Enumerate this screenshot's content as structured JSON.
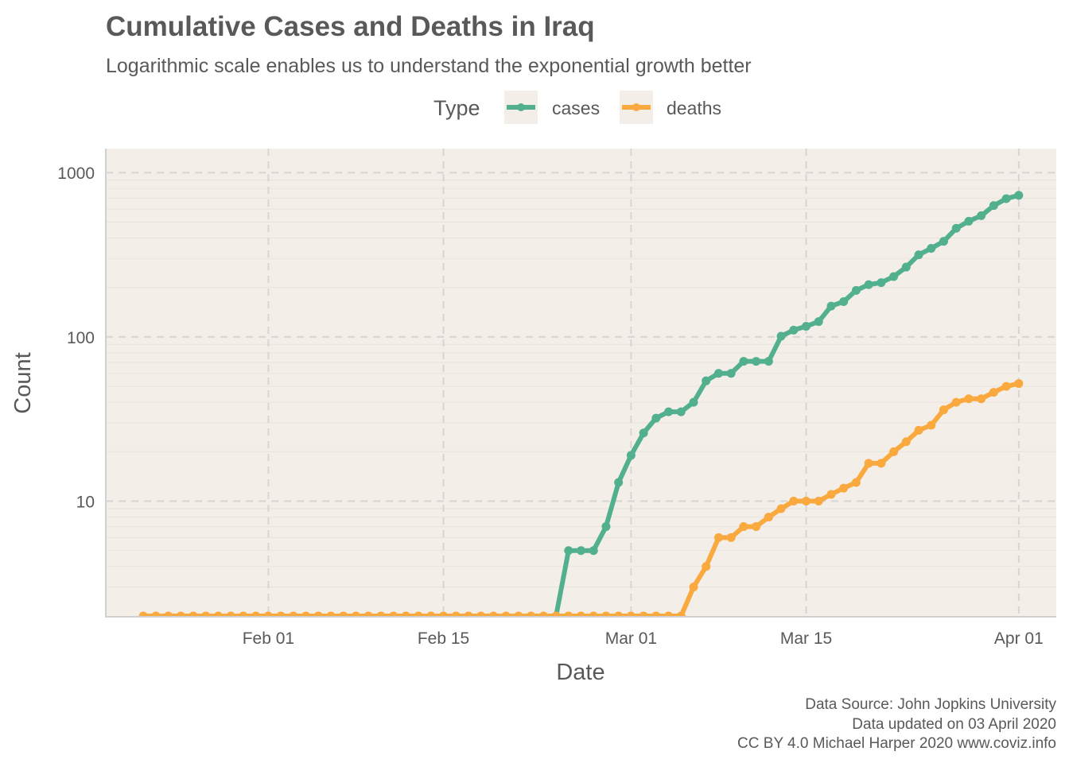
{
  "chart_data": {
    "type": "line",
    "title": "Cumulative Cases and Deaths in Iraq",
    "subtitle": "Logarithmic scale enables us to understand the exponential growth better",
    "xlabel": "Date",
    "ylabel": "Count",
    "y_scale": "log10",
    "ylim": [
      2,
      1400
    ],
    "xlim": [
      "2020-01-19",
      "2020-04-04"
    ],
    "x_ticks": [
      {
        "date": "2020-02-01",
        "label": "Feb 01"
      },
      {
        "date": "2020-02-15",
        "label": "Feb 15"
      },
      {
        "date": "2020-03-01",
        "label": "Mar 01"
      },
      {
        "date": "2020-03-15",
        "label": "Mar 15"
      },
      {
        "date": "2020-04-01",
        "label": "Apr 01"
      }
    ],
    "y_ticks": [
      {
        "value": 10,
        "label": "10"
      },
      {
        "value": 100,
        "label": "100"
      },
      {
        "value": 1000,
        "label": "1000"
      }
    ],
    "grid": true,
    "legend": {
      "title": "Type",
      "position": "top"
    },
    "colors": {
      "cases": "#52b08f",
      "deaths": "#f9a93e",
      "panel": "#f4eee8",
      "grid": "#d5d5d5"
    },
    "series": [
      {
        "name": "cases",
        "color": "#52b08f",
        "points": [
          {
            "x": "2020-02-24",
            "y": 1
          },
          {
            "x": "2020-02-25",
            "y": 5
          },
          {
            "x": "2020-02-26",
            "y": 5
          },
          {
            "x": "2020-02-27",
            "y": 5
          },
          {
            "x": "2020-02-28",
            "y": 7
          },
          {
            "x": "2020-02-29",
            "y": 13
          },
          {
            "x": "2020-03-01",
            "y": 19
          },
          {
            "x": "2020-03-02",
            "y": 26
          },
          {
            "x": "2020-03-03",
            "y": 32
          },
          {
            "x": "2020-03-04",
            "y": 35
          },
          {
            "x": "2020-03-05",
            "y": 35
          },
          {
            "x": "2020-03-06",
            "y": 40
          },
          {
            "x": "2020-03-07",
            "y": 54
          },
          {
            "x": "2020-03-08",
            "y": 60
          },
          {
            "x": "2020-03-09",
            "y": 60
          },
          {
            "x": "2020-03-10",
            "y": 71
          },
          {
            "x": "2020-03-11",
            "y": 71
          },
          {
            "x": "2020-03-12",
            "y": 71
          },
          {
            "x": "2020-03-13",
            "y": 101
          },
          {
            "x": "2020-03-14",
            "y": 110
          },
          {
            "x": "2020-03-15",
            "y": 116
          },
          {
            "x": "2020-03-16",
            "y": 124
          },
          {
            "x": "2020-03-17",
            "y": 154
          },
          {
            "x": "2020-03-18",
            "y": 164
          },
          {
            "x": "2020-03-19",
            "y": 192
          },
          {
            "x": "2020-03-20",
            "y": 208
          },
          {
            "x": "2020-03-21",
            "y": 214
          },
          {
            "x": "2020-03-22",
            "y": 233
          },
          {
            "x": "2020-03-23",
            "y": 266
          },
          {
            "x": "2020-03-24",
            "y": 316
          },
          {
            "x": "2020-03-25",
            "y": 346
          },
          {
            "x": "2020-03-26",
            "y": 382
          },
          {
            "x": "2020-03-27",
            "y": 458
          },
          {
            "x": "2020-03-28",
            "y": 506
          },
          {
            "x": "2020-03-29",
            "y": 547
          },
          {
            "x": "2020-03-30",
            "y": 630
          },
          {
            "x": "2020-03-31",
            "y": 694
          },
          {
            "x": "2020-04-01",
            "y": 728
          }
        ]
      },
      {
        "name": "deaths",
        "color": "#f9a93e",
        "points": [
          {
            "x": "2020-01-22",
            "y": 0
          },
          {
            "x": "2020-01-23",
            "y": 0
          },
          {
            "x": "2020-01-24",
            "y": 0
          },
          {
            "x": "2020-01-25",
            "y": 0
          },
          {
            "x": "2020-01-26",
            "y": 0
          },
          {
            "x": "2020-01-27",
            "y": 0
          },
          {
            "x": "2020-01-28",
            "y": 0
          },
          {
            "x": "2020-01-29",
            "y": 0
          },
          {
            "x": "2020-01-30",
            "y": 0
          },
          {
            "x": "2020-01-31",
            "y": 0
          },
          {
            "x": "2020-02-01",
            "y": 0
          },
          {
            "x": "2020-02-02",
            "y": 0
          },
          {
            "x": "2020-02-03",
            "y": 0
          },
          {
            "x": "2020-02-04",
            "y": 0
          },
          {
            "x": "2020-02-05",
            "y": 0
          },
          {
            "x": "2020-02-06",
            "y": 0
          },
          {
            "x": "2020-02-07",
            "y": 0
          },
          {
            "x": "2020-02-08",
            "y": 0
          },
          {
            "x": "2020-02-09",
            "y": 0
          },
          {
            "x": "2020-02-10",
            "y": 0
          },
          {
            "x": "2020-02-11",
            "y": 0
          },
          {
            "x": "2020-02-12",
            "y": 0
          },
          {
            "x": "2020-02-13",
            "y": 0
          },
          {
            "x": "2020-02-14",
            "y": 0
          },
          {
            "x": "2020-02-15",
            "y": 0
          },
          {
            "x": "2020-02-16",
            "y": 0
          },
          {
            "x": "2020-02-17",
            "y": 0
          },
          {
            "x": "2020-02-18",
            "y": 0
          },
          {
            "x": "2020-02-19",
            "y": 0
          },
          {
            "x": "2020-02-20",
            "y": 0
          },
          {
            "x": "2020-02-21",
            "y": 0
          },
          {
            "x": "2020-02-22",
            "y": 0
          },
          {
            "x": "2020-02-23",
            "y": 0
          },
          {
            "x": "2020-02-24",
            "y": 0
          },
          {
            "x": "2020-02-25",
            "y": 0
          },
          {
            "x": "2020-02-26",
            "y": 0
          },
          {
            "x": "2020-02-27",
            "y": 0
          },
          {
            "x": "2020-02-28",
            "y": 0
          },
          {
            "x": "2020-02-29",
            "y": 0
          },
          {
            "x": "2020-03-01",
            "y": 0
          },
          {
            "x": "2020-03-02",
            "y": 0
          },
          {
            "x": "2020-03-03",
            "y": 0
          },
          {
            "x": "2020-03-04",
            "y": 1
          },
          {
            "x": "2020-03-05",
            "y": 2
          },
          {
            "x": "2020-03-06",
            "y": 3
          },
          {
            "x": "2020-03-07",
            "y": 4
          },
          {
            "x": "2020-03-08",
            "y": 6
          },
          {
            "x": "2020-03-09",
            "y": 6
          },
          {
            "x": "2020-03-10",
            "y": 7
          },
          {
            "x": "2020-03-11",
            "y": 7
          },
          {
            "x": "2020-03-12",
            "y": 8
          },
          {
            "x": "2020-03-13",
            "y": 9
          },
          {
            "x": "2020-03-14",
            "y": 10
          },
          {
            "x": "2020-03-15",
            "y": 10
          },
          {
            "x": "2020-03-16",
            "y": 10
          },
          {
            "x": "2020-03-17",
            "y": 11
          },
          {
            "x": "2020-03-18",
            "y": 12
          },
          {
            "x": "2020-03-19",
            "y": 13
          },
          {
            "x": "2020-03-20",
            "y": 17
          },
          {
            "x": "2020-03-21",
            "y": 17
          },
          {
            "x": "2020-03-22",
            "y": 20
          },
          {
            "x": "2020-03-23",
            "y": 23
          },
          {
            "x": "2020-03-24",
            "y": 27
          },
          {
            "x": "2020-03-25",
            "y": 29
          },
          {
            "x": "2020-03-26",
            "y": 36
          },
          {
            "x": "2020-03-27",
            "y": 40
          },
          {
            "x": "2020-03-28",
            "y": 42
          },
          {
            "x": "2020-03-29",
            "y": 42
          },
          {
            "x": "2020-03-30",
            "y": 46
          },
          {
            "x": "2020-03-31",
            "y": 50
          },
          {
            "x": "2020-04-01",
            "y": 52
          }
        ]
      }
    ],
    "caption": [
      "Data Source: John Jopkins University",
      "Data updated on 03 April 2020",
      "CC BY 4.0 Michael Harper 2020 www.coviz.info"
    ]
  }
}
